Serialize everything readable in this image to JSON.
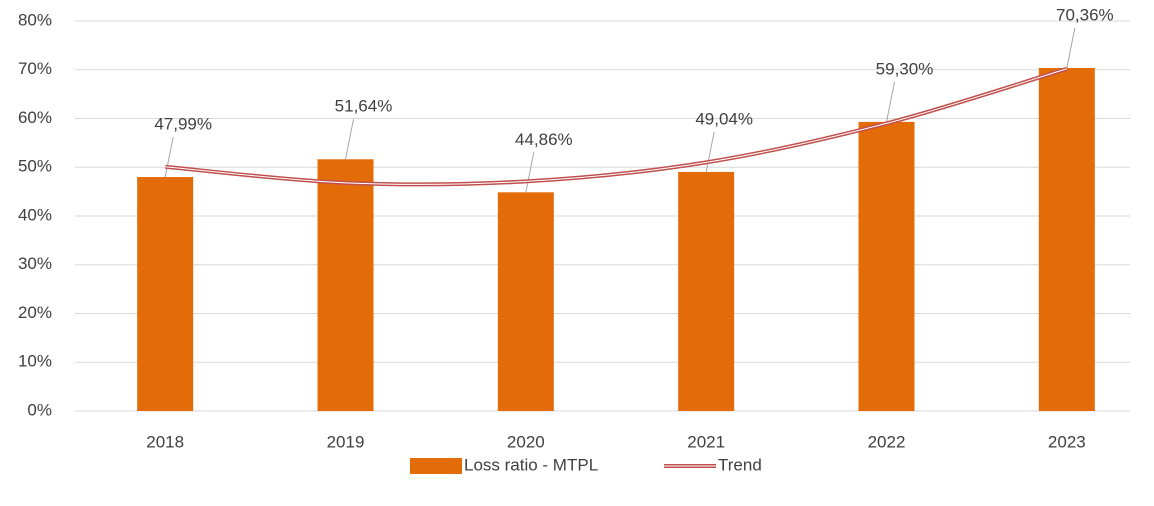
{
  "chart_data": {
    "type": "bar",
    "categories": [
      "2018",
      "2019",
      "2020",
      "2021",
      "2022",
      "2023"
    ],
    "series": [
      {
        "name": "Loss ratio - MTPL",
        "type": "bar",
        "color": "#e36c09",
        "values": [
          47.99,
          51.64,
          44.86,
          49.04,
          59.3,
          70.36
        ],
        "value_labels": [
          "47,99%",
          "51,64%",
          "44,86%",
          "49,04%",
          "59,30%",
          "70,36%"
        ]
      },
      {
        "name": "Trend",
        "type": "line",
        "color": "#c0504d",
        "values": [
          50.1,
          46.8,
          47.1,
          51.0,
          59.0,
          70.2
        ]
      }
    ],
    "ylim": [
      0,
      80
    ],
    "yticks": [
      {
        "value": 0,
        "label": "0%"
      },
      {
        "value": 10,
        "label": "10%"
      },
      {
        "value": 20,
        "label": "20%"
      },
      {
        "value": 30,
        "label": "30%"
      },
      {
        "value": 40,
        "label": "40%"
      },
      {
        "value": 50,
        "label": "50%"
      },
      {
        "value": 60,
        "label": "60%"
      },
      {
        "value": 70,
        "label": "70%"
      },
      {
        "value": 80,
        "label": "80%"
      }
    ],
    "grid": true,
    "legend": "bottom"
  }
}
